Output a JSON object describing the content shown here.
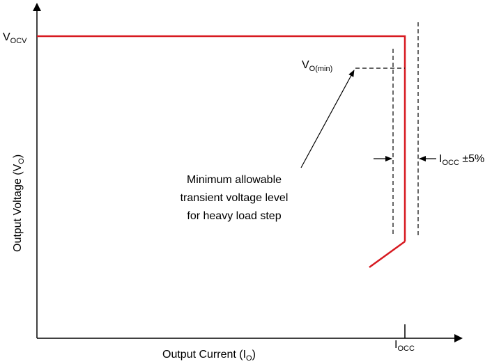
{
  "diagram": {
    "y_axis_label": {
      "main": "Output Voltage (V",
      "sub": "O",
      "close": ")"
    },
    "x_axis_label": {
      "main": "Output Current (I",
      "sub": "O",
      "close": ")"
    },
    "vocv_label": {
      "main": "V",
      "sub": "OCV"
    },
    "vomin_label": {
      "main": "V",
      "sub": "O(min)"
    },
    "iocc_label": {
      "main": "I",
      "sub": "OCC"
    },
    "iocc_tol_label": {
      "main": "I",
      "sub": "OCC",
      "suffix": " ±5%"
    },
    "annotation": [
      "Minimum allowable",
      "transient voltage level",
      "for heavy load step"
    ],
    "colors": {
      "curve": "#d71920",
      "axes": "#000000",
      "dashed": "#000000"
    }
  }
}
